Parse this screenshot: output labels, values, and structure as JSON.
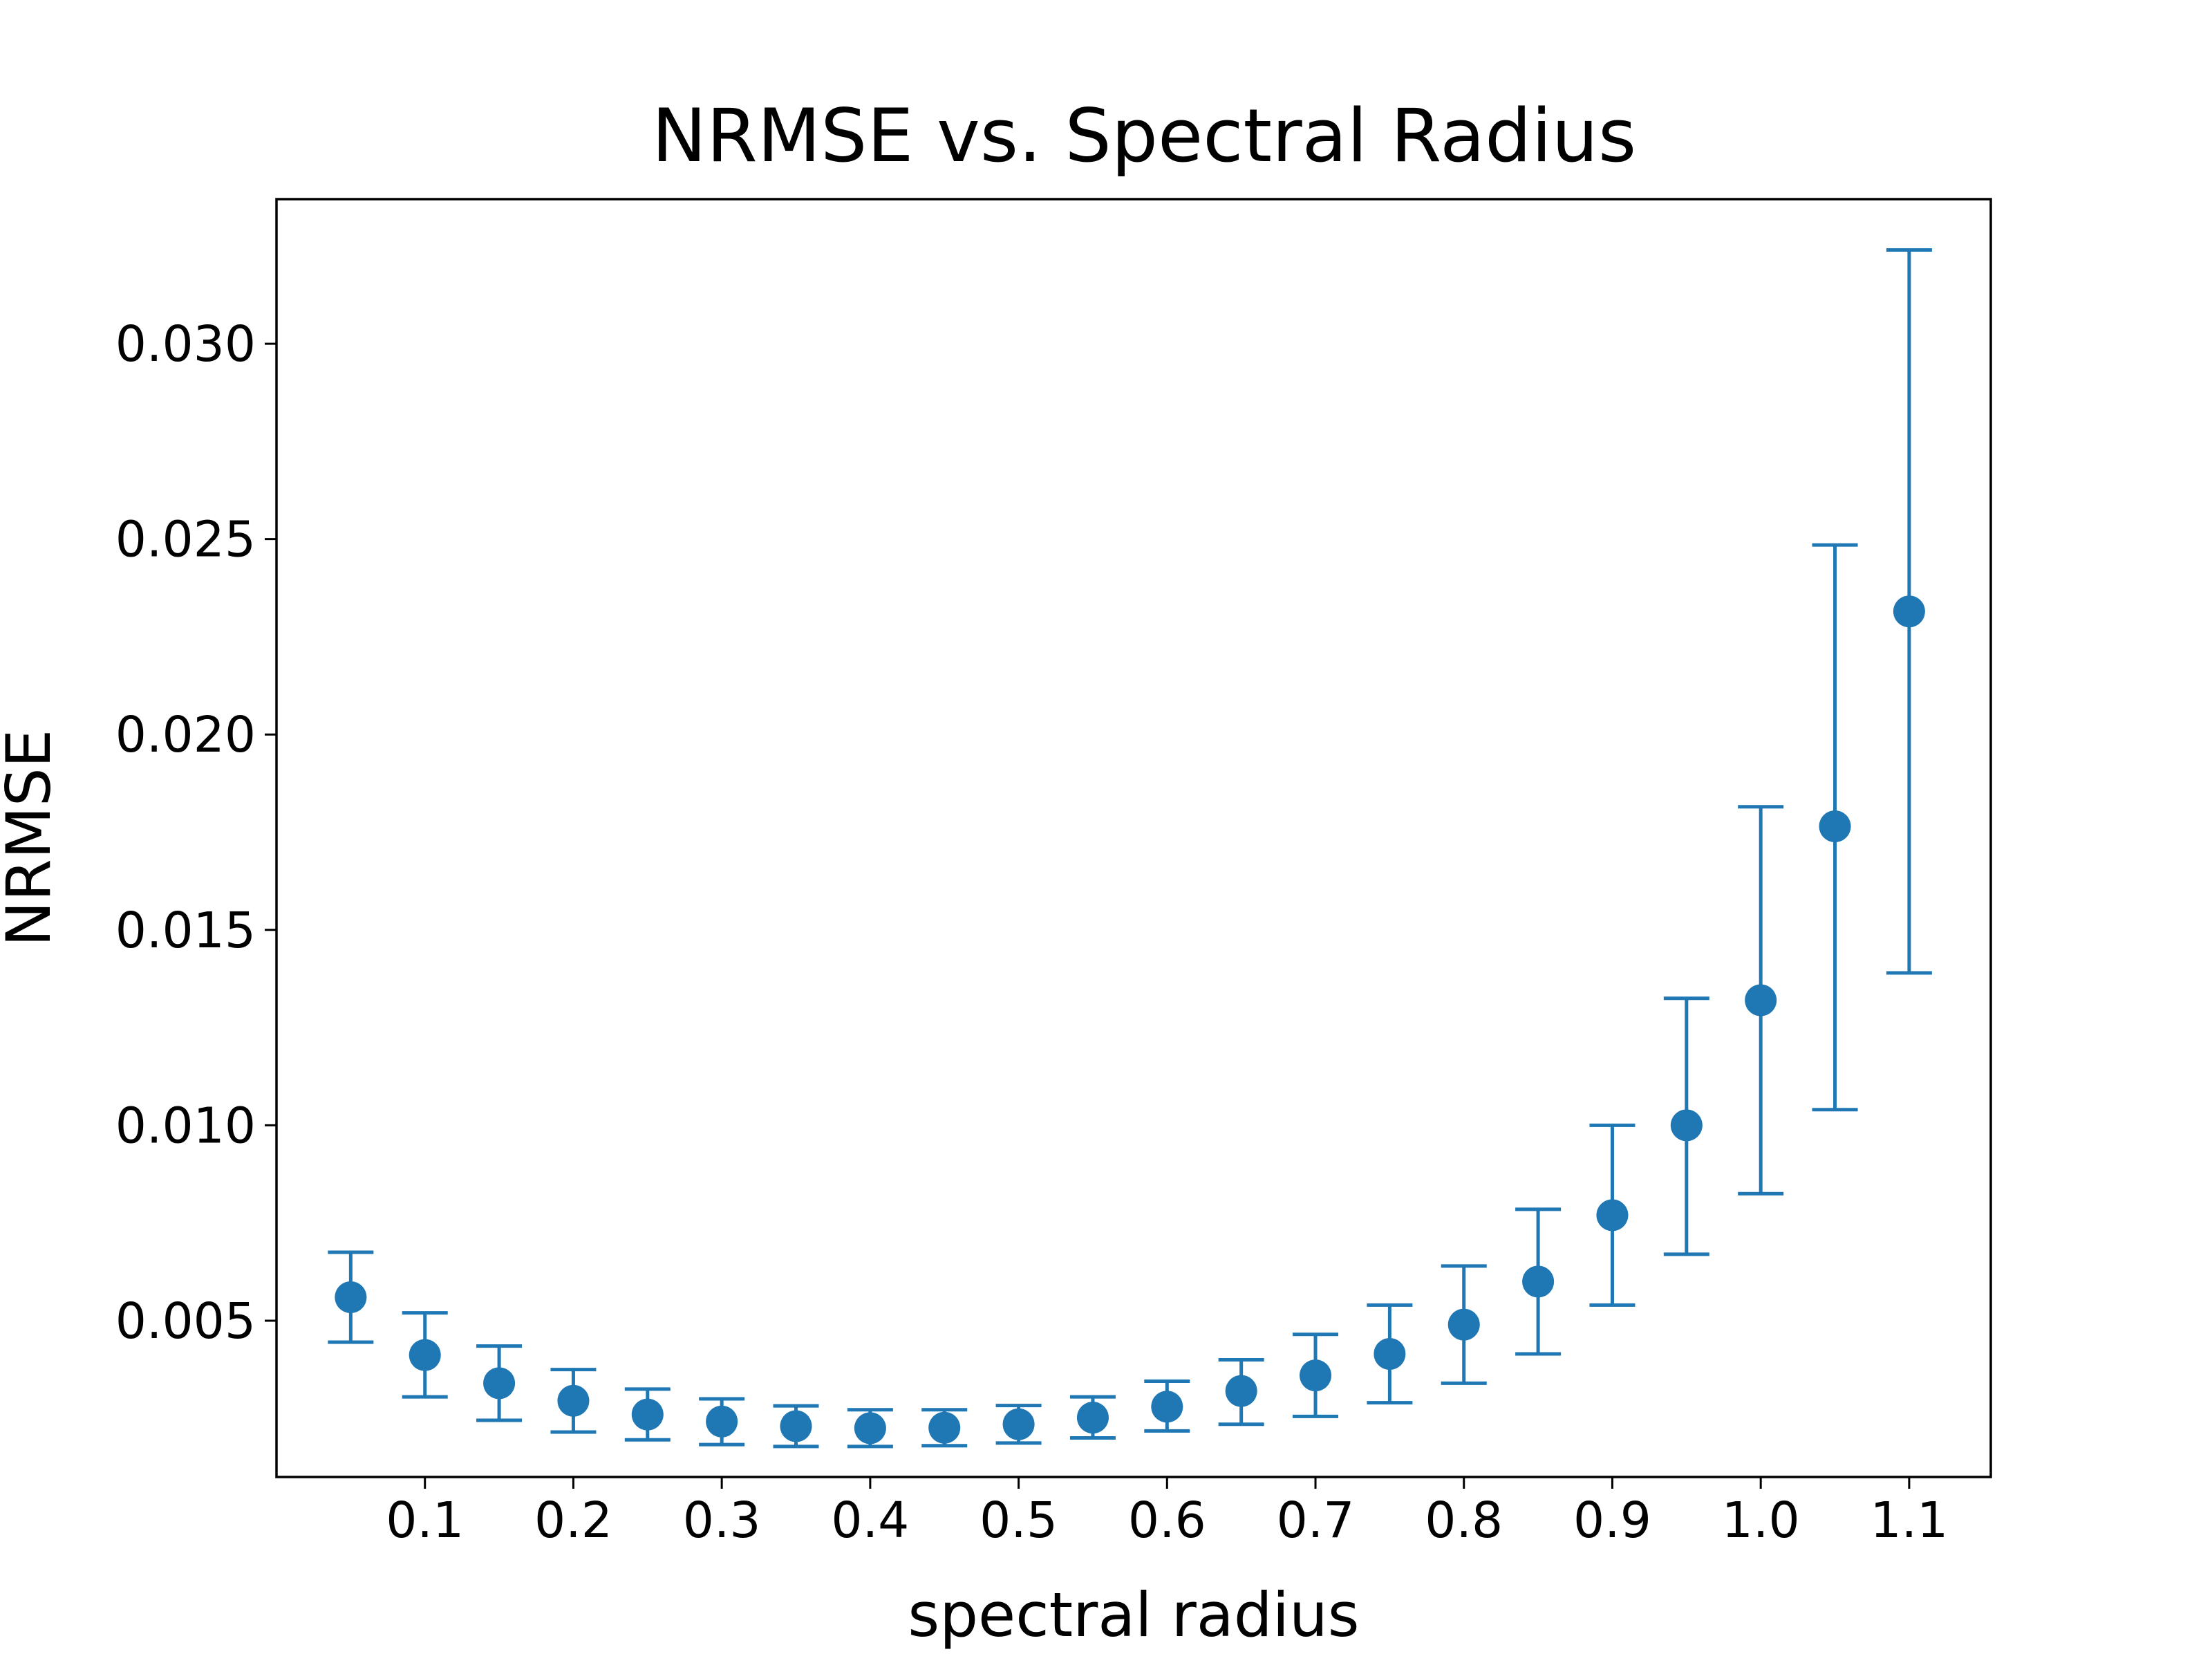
{
  "chart_data": {
    "type": "scatter",
    "title": "NRMSE vs. Spectral Radius",
    "xlabel": "spectral radius",
    "ylabel": "NRMSE",
    "xlim": [
      0.0,
      1.155
    ],
    "ylim": [
      0.001,
      0.0337
    ],
    "xticks": [
      0.1,
      0.2,
      0.3,
      0.4,
      0.5,
      0.6,
      0.7,
      0.8,
      0.9,
      1.0,
      1.1
    ],
    "xtick_labels": [
      "0.1",
      "0.2",
      "0.3",
      "0.4",
      "0.5",
      "0.6",
      "0.7",
      "0.8",
      "0.9",
      "1.0",
      "1.1"
    ],
    "yticks": [
      0.005,
      0.01,
      0.015,
      0.02,
      0.025,
      0.03
    ],
    "ytick_labels": [
      "0.005",
      "0.010",
      "0.015",
      "0.020",
      "0.025",
      "0.030"
    ],
    "grid": false,
    "series_color": "#1f77b4",
    "points": [
      {
        "x": 0.05,
        "y": 0.0056,
        "err_low": 0.00445,
        "err_high": 0.00675
      },
      {
        "x": 0.1,
        "y": 0.00412,
        "err_low": 0.00305,
        "err_high": 0.0052
      },
      {
        "x": 0.15,
        "y": 0.0034,
        "err_low": 0.00245,
        "err_high": 0.00435
      },
      {
        "x": 0.2,
        "y": 0.00295,
        "err_low": 0.00215,
        "err_high": 0.00375
      },
      {
        "x": 0.25,
        "y": 0.0026,
        "err_low": 0.00195,
        "err_high": 0.00325
      },
      {
        "x": 0.3,
        "y": 0.00242,
        "err_low": 0.00183,
        "err_high": 0.003
      },
      {
        "x": 0.35,
        "y": 0.0023,
        "err_low": 0.00178,
        "err_high": 0.00282
      },
      {
        "x": 0.4,
        "y": 0.00225,
        "err_low": 0.00178,
        "err_high": 0.00272
      },
      {
        "x": 0.45,
        "y": 0.00226,
        "err_low": 0.0018,
        "err_high": 0.00272
      },
      {
        "x": 0.5,
        "y": 0.00235,
        "err_low": 0.00187,
        "err_high": 0.00283
      },
      {
        "x": 0.55,
        "y": 0.00252,
        "err_low": 0.002,
        "err_high": 0.00305
      },
      {
        "x": 0.6,
        "y": 0.0028,
        "err_low": 0.00218,
        "err_high": 0.00345
      },
      {
        "x": 0.65,
        "y": 0.0032,
        "err_low": 0.00235,
        "err_high": 0.004
      },
      {
        "x": 0.7,
        "y": 0.0036,
        "err_low": 0.00255,
        "err_high": 0.00465
      },
      {
        "x": 0.75,
        "y": 0.00415,
        "err_low": 0.0029,
        "err_high": 0.0054
      },
      {
        "x": 0.8,
        "y": 0.0049,
        "err_low": 0.0034,
        "err_high": 0.0064
      },
      {
        "x": 0.85,
        "y": 0.006,
        "err_low": 0.00415,
        "err_high": 0.00785
      },
      {
        "x": 0.9,
        "y": 0.0077,
        "err_low": 0.0054,
        "err_high": 0.01
      },
      {
        "x": 0.95,
        "y": 0.01,
        "err_low": 0.0067,
        "err_high": 0.01325
      },
      {
        "x": 1.0,
        "y": 0.0132,
        "err_low": 0.00825,
        "err_high": 0.01815
      },
      {
        "x": 1.05,
        "y": 0.01765,
        "err_low": 0.0104,
        "err_high": 0.02485
      },
      {
        "x": 1.1,
        "y": 0.02315,
        "err_low": 0.0139,
        "err_high": 0.0324
      }
    ]
  }
}
